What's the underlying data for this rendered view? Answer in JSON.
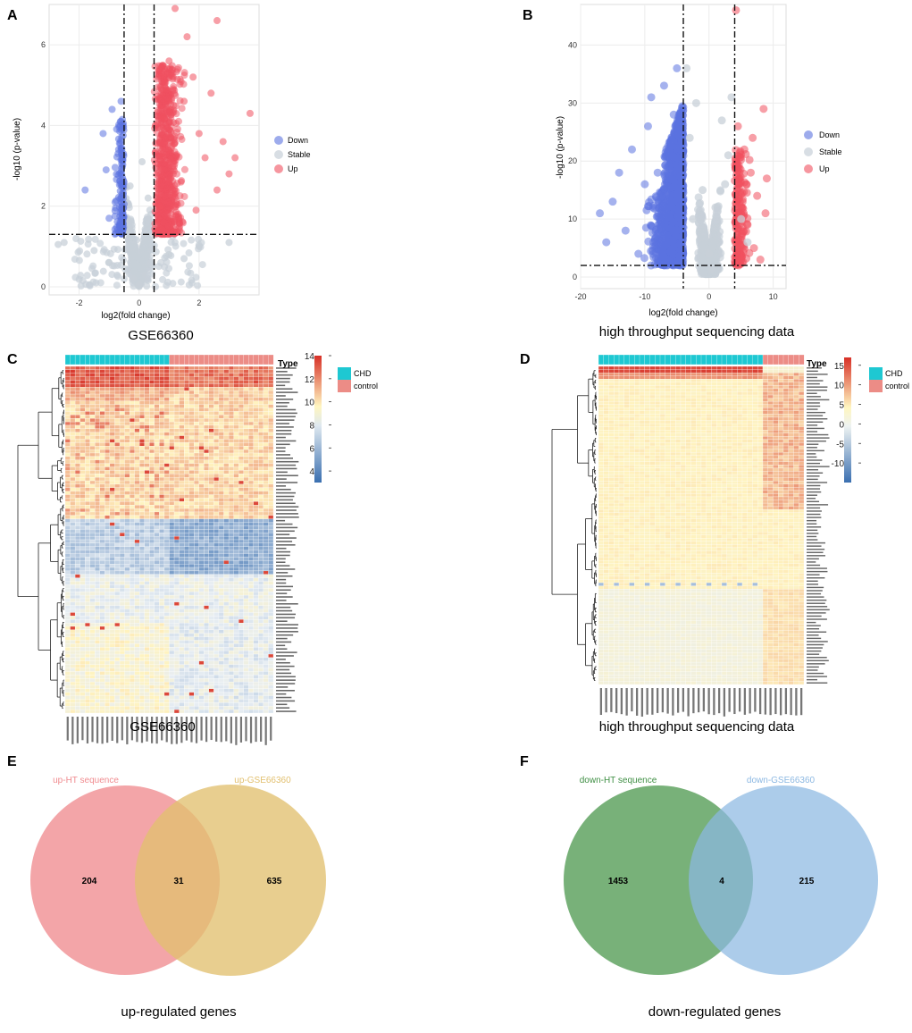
{
  "panels": {
    "A": "A",
    "B": "B",
    "C": "C",
    "D": "D",
    "E": "E",
    "F": "F"
  },
  "captions": {
    "A": "GSE66360",
    "B": "high throughput sequencing data",
    "C": "GSE66360",
    "D": "high throughput sequencing data",
    "E": "up-regulated genes",
    "F": "down-regulated genes"
  },
  "colors": {
    "down": "#5b73e0",
    "stable": "#c8d0d8",
    "up": "#f0505f",
    "chd": "#1ec8d2",
    "control": "#ec8c86",
    "venn_up_ht": "#f08c90",
    "venn_up_gse": "#e2c070",
    "venn_down_ht": "#5aa05c",
    "venn_down_gse": "#8cb8e2",
    "heat_high": "#d73027",
    "heat_mid": "#ffffbf",
    "heat_low": "#4575b4"
  },
  "chart_data": [
    {
      "id": "A",
      "type": "scatter",
      "subtype": "volcano",
      "title": "",
      "xlabel": "log2(fold change)",
      "ylabel": "-log10 (p-value)",
      "xlim": [
        -3,
        4
      ],
      "ylim": [
        -0.2,
        7
      ],
      "xticks": [
        -2,
        0,
        2
      ],
      "yticks": [
        0,
        2,
        4,
        6
      ],
      "thresholds": {
        "x": [
          -0.5,
          0.5
        ],
        "y": 1.3
      },
      "legend": [
        "Down",
        "Stable",
        "Up"
      ],
      "legend_position": "right",
      "series": [
        {
          "name": "Down",
          "color": "#5b73e0"
        },
        {
          "name": "Stable",
          "color": "#c8d0d8"
        },
        {
          "name": "Up",
          "color": "#f0505f"
        }
      ],
      "points": {
        "stable": [
          [
            -2.7,
            1.05
          ],
          [
            -2.5,
            1.1
          ],
          [
            -1.5,
            0.9
          ],
          [
            -1,
            0.6
          ],
          [
            -0.4,
            0.4
          ],
          [
            -0.2,
            0.2
          ],
          [
            0,
            0.05
          ],
          [
            0.2,
            0.3
          ],
          [
            0.4,
            0.6
          ],
          [
            1,
            0.8
          ],
          [
            1.5,
            0.7
          ],
          [
            2,
            1
          ],
          [
            3,
            1.1
          ],
          [
            -0.3,
            2.5
          ],
          [
            0.3,
            2.2
          ],
          [
            0.1,
            3.1
          ]
        ],
        "down": [
          [
            -1.8,
            2.4
          ],
          [
            -1.2,
            3.8
          ],
          [
            -0.9,
            4.4
          ],
          [
            -0.7,
            3.3
          ],
          [
            -0.6,
            4.6
          ],
          [
            -1.1,
            2.9
          ],
          [
            -0.8,
            2.1
          ],
          [
            -1,
            1.7
          ],
          [
            -0.55,
            2.7
          ],
          [
            -0.65,
            1.5
          ]
        ],
        "up": [
          [
            1.2,
            6.9
          ],
          [
            2.6,
            6.6
          ],
          [
            1.6,
            6.2
          ],
          [
            3.7,
            4.3
          ],
          [
            2.4,
            4.8
          ],
          [
            1.8,
            5.2
          ],
          [
            0.8,
            4.2
          ],
          [
            1.1,
            3.5
          ],
          [
            2,
            3.8
          ],
          [
            3,
            2.8
          ],
          [
            3.2,
            3.2
          ],
          [
            2.6,
            2.4
          ],
          [
            0.7,
            2
          ],
          [
            1.4,
            2.6
          ],
          [
            0.6,
            1.6
          ],
          [
            1.9,
            1.9
          ],
          [
            2.2,
            3.2
          ],
          [
            1,
            5.6
          ],
          [
            1.5,
            4.6
          ],
          [
            2.8,
            3.6
          ]
        ]
      }
    },
    {
      "id": "B",
      "type": "scatter",
      "subtype": "volcano",
      "title": "",
      "xlabel": "log2(fold change)",
      "ylabel": "-log10 (p-value)",
      "xlim": [
        -20,
        12
      ],
      "ylim": [
        -2,
        47
      ],
      "xticks": [
        -20,
        -10,
        0,
        10
      ],
      "yticks": [
        0,
        10,
        20,
        30,
        40
      ],
      "thresholds": {
        "x": [
          -4,
          4
        ],
        "y": 2
      },
      "legend": [
        "Down",
        "Stable",
        "Up"
      ],
      "legend_position": "right",
      "series": [
        {
          "name": "Down",
          "color": "#5b73e0"
        },
        {
          "name": "Stable",
          "color": "#c8d0d8"
        },
        {
          "name": "Up",
          "color": "#f0505f"
        }
      ],
      "points": {
        "stable": [
          [
            -3,
            24
          ],
          [
            -2,
            30
          ],
          [
            -1,
            15
          ],
          [
            0,
            4
          ],
          [
            1,
            12
          ],
          [
            2,
            27
          ],
          [
            3,
            21
          ],
          [
            -2.5,
            10
          ],
          [
            2.5,
            16
          ],
          [
            0.5,
            1.5
          ],
          [
            5,
            10
          ],
          [
            6,
            6
          ],
          [
            3.5,
            31
          ],
          [
            -3.5,
            36
          ]
        ],
        "down": [
          [
            -5,
            36
          ],
          [
            -7,
            33
          ],
          [
            -9,
            31
          ],
          [
            -12,
            22
          ],
          [
            -15,
            13
          ],
          [
            -17,
            11
          ],
          [
            -6,
            23
          ],
          [
            -10,
            16
          ],
          [
            -8,
            18
          ],
          [
            -5.5,
            28
          ],
          [
            -13,
            8
          ],
          [
            -16,
            6
          ],
          [
            -11,
            4
          ],
          [
            -7,
            3.5
          ],
          [
            -14,
            18
          ],
          [
            -9.5,
            26
          ]
        ],
        "up": [
          [
            4.2,
            46
          ],
          [
            4.5,
            26
          ],
          [
            5.5,
            22
          ],
          [
            6.5,
            18
          ],
          [
            7.5,
            14
          ],
          [
            8.5,
            29
          ],
          [
            6,
            9
          ],
          [
            7,
            5
          ],
          [
            5,
            3
          ],
          [
            8,
            3
          ],
          [
            9,
            17
          ],
          [
            4.8,
            13
          ],
          [
            6.8,
            24
          ],
          [
            8.8,
            11
          ],
          [
            5.8,
            16
          ]
        ]
      }
    },
    {
      "id": "C",
      "type": "heatmap",
      "title": "",
      "xlabel": "",
      "ylabel": "",
      "legend_title": "Type",
      "legend": [
        "CHD",
        "control"
      ],
      "legend_position": "right",
      "scale": {
        "min": 3,
        "max": 14,
        "ticks": [
          4,
          6,
          8,
          10,
          12,
          14
        ]
      },
      "groups": [
        {
          "name": "CHD",
          "count": 21
        },
        {
          "name": "control",
          "count": 21
        }
      ],
      "n_rows": 100
    },
    {
      "id": "D",
      "type": "heatmap",
      "title": "",
      "xlabel": "",
      "ylabel": "",
      "legend_title": "Type",
      "legend": [
        "CHD",
        "control"
      ],
      "legend_position": "right",
      "scale": {
        "min": -15,
        "max": 17,
        "ticks": [
          -10,
          -5,
          0,
          5,
          10,
          15
        ]
      },
      "groups": [
        {
          "name": "CHD",
          "count": 32
        },
        {
          "name": "control",
          "count": 8
        }
      ],
      "n_rows": 100
    },
    {
      "id": "E",
      "type": "venn",
      "sets": [
        {
          "name": "up-HT sequence",
          "only": 204
        },
        {
          "name": "up-GSE66360",
          "only": 635
        }
      ],
      "intersection": 31
    },
    {
      "id": "F",
      "type": "venn",
      "sets": [
        {
          "name": "down-HT sequence",
          "only": 1453
        },
        {
          "name": "down-GSE66360",
          "only": 215
        }
      ],
      "intersection": 4
    }
  ]
}
